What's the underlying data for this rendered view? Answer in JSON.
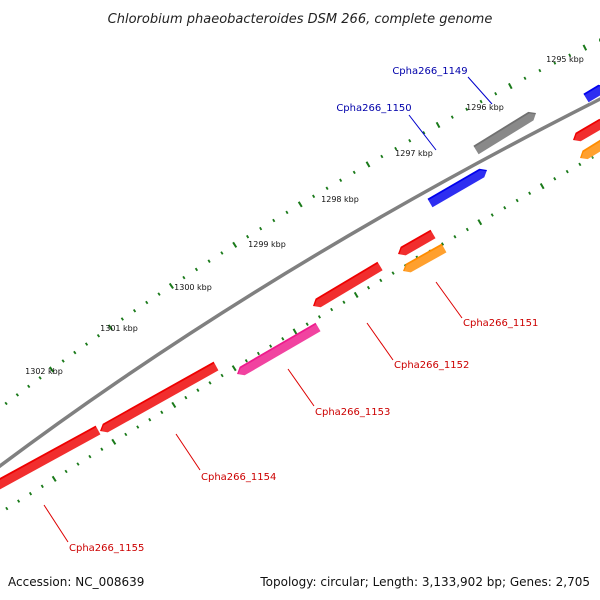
{
  "title": "Chlorobium phaeobacteroides DSM 266, complete genome",
  "footer": {
    "accession": "Accession: NC_008639",
    "summary": "Topology: circular; Length: 3,133,902 bp; Genes: 2,705"
  },
  "colors": {
    "backbone": "#808080",
    "tick": "#1a7a1a",
    "label_forward": "#0000aa",
    "label_reverse": "#cc0000",
    "leader_forward": "#0000cc",
    "leader_reverse": "#dd0000"
  },
  "ticks": [
    {
      "label": "1295 kbp"
    },
    {
      "label": "1296 kbp"
    },
    {
      "label": "1297 kbp"
    },
    {
      "label": "1298 kbp"
    },
    {
      "label": "1299 kbp"
    },
    {
      "label": "1300 kbp"
    },
    {
      "label": "1301 kbp"
    },
    {
      "label": "1302 kbp"
    }
  ],
  "genes": [
    {
      "label": "Cpha266_1149",
      "strand": "+",
      "color": "#707070"
    },
    {
      "label": "Cpha266_1150",
      "strand": "+",
      "color": "#0000ee"
    },
    {
      "label": "Cpha266_1151",
      "strand": "-",
      "color": "#ee0000"
    },
    {
      "label": "Cpha266_1152",
      "strand": "-",
      "color": "#ee0000"
    },
    {
      "label": "Cpha266_1153",
      "strand": "-",
      "color": "#ee1a8c"
    },
    {
      "label": "Cpha266_1154",
      "strand": "-",
      "color": "#ee0000"
    },
    {
      "label": "Cpha266_1155",
      "strand": "-",
      "color": "#ee0000"
    }
  ]
}
